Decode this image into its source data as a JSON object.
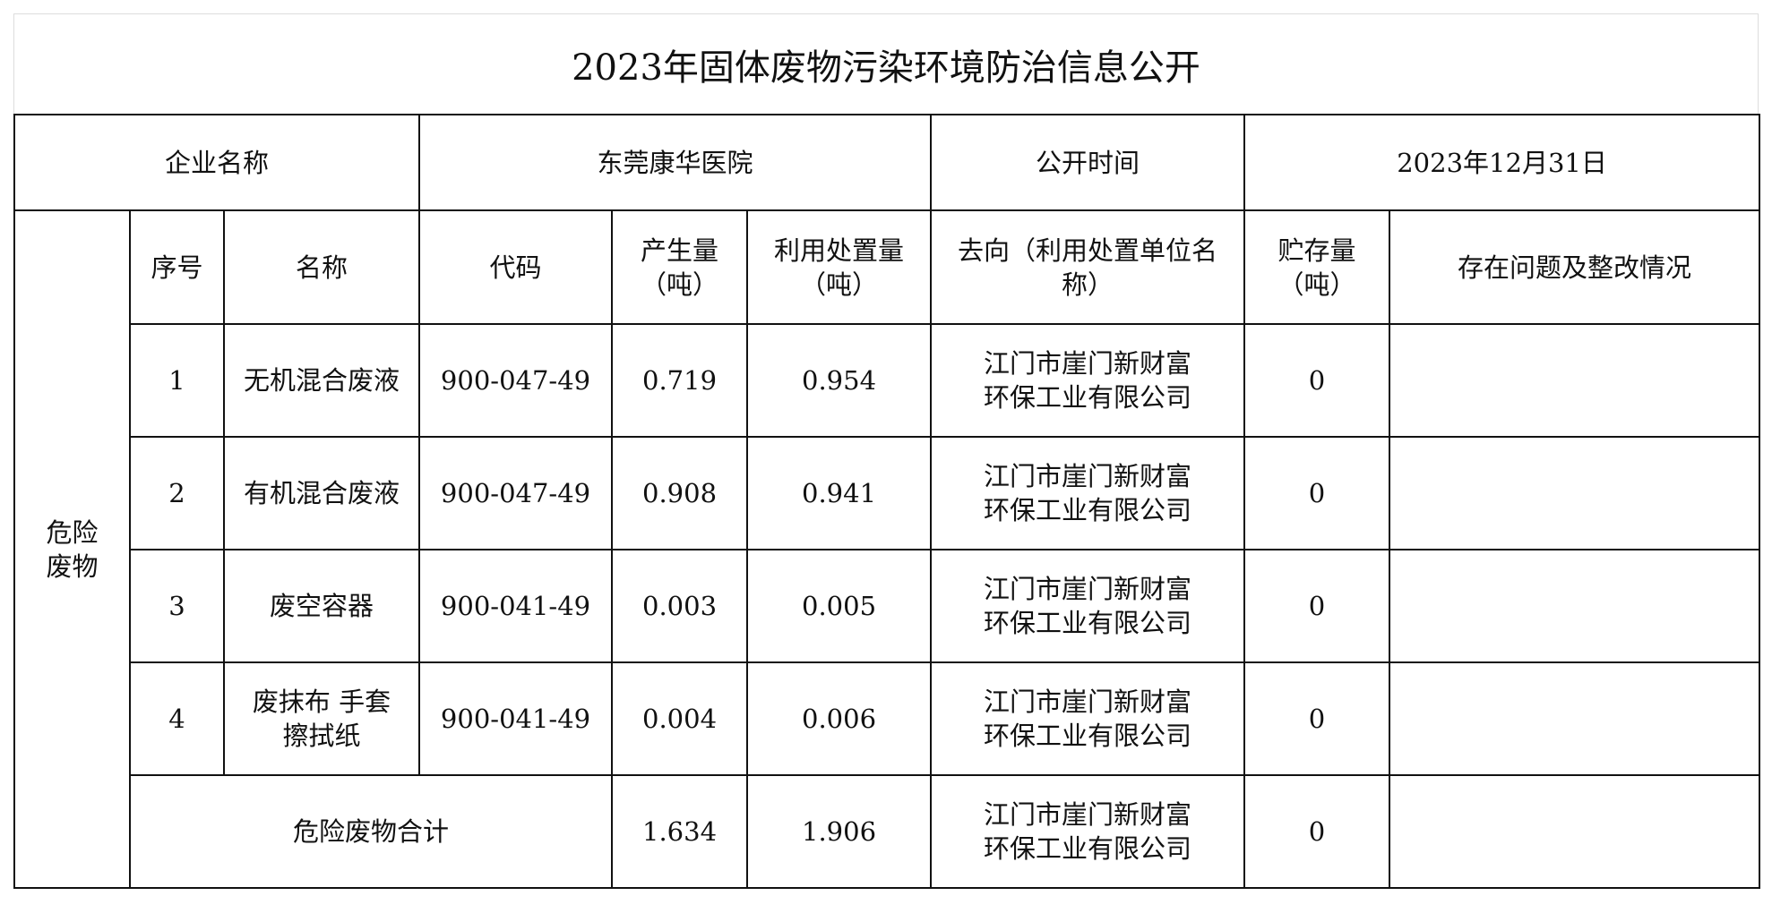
{
  "title": "2023年固体废物污染环境防治信息公开",
  "header": {
    "company_label": "企业名称",
    "company_value": "东莞康华医院",
    "time_label": "公开时间",
    "time_value": "2023年12月31日"
  },
  "category": "危险废物",
  "columns": {
    "seq": "序号",
    "name": "名称",
    "code": "代码",
    "produced": "产生量（吨）",
    "disposed": "利用处置量（吨）",
    "destination": "去向（利用处置单位名称）",
    "stored": "贮存量（吨）",
    "issues": "存在问题及整改情况"
  },
  "rows": [
    {
      "seq": "1",
      "name": "无机混合废液",
      "code": "900-047-49",
      "produced": "0.719",
      "disposed": "0.954",
      "destination": "江门市崖门新财富环保工业有限公司",
      "stored": "0",
      "issues": ""
    },
    {
      "seq": "2",
      "name": "有机混合废液",
      "code": "900-047-49",
      "produced": "0.908",
      "disposed": "0.941",
      "destination": "江门市崖门新财富环保工业有限公司",
      "stored": "0",
      "issues": ""
    },
    {
      "seq": "3",
      "name": "废空容器",
      "code": "900-041-49",
      "produced": "0.003",
      "disposed": "0.005",
      "destination": "江门市崖门新财富环保工业有限公司",
      "stored": "0",
      "issues": ""
    },
    {
      "seq": "4",
      "name": "废抹布 手套擦拭纸",
      "code": "900-041-49",
      "produced": "0.004",
      "disposed": "0.006",
      "destination": "江门市崖门新财富环保工业有限公司",
      "stored": "0",
      "issues": ""
    }
  ],
  "total": {
    "label": "危险废物合计",
    "produced": "1.634",
    "disposed": "1.906",
    "destination": "江门市崖门新财富环保工业有限公司",
    "stored": "0",
    "issues": ""
  }
}
